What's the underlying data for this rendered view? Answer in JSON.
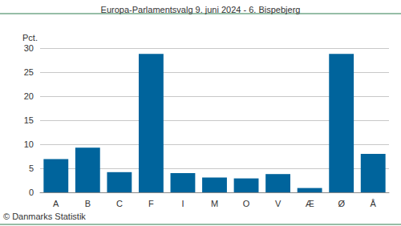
{
  "chart_data": {
    "type": "bar",
    "title": "Europa-Parlamentsvalg 9. juni 2024 - 6. Bispebjerg",
    "y_label": "Pct.",
    "annotations": [
      "© Danmarks Statistik"
    ],
    "categories": [
      "A",
      "B",
      "C",
      "F",
      "I",
      "M",
      "O",
      "V",
      "Æ",
      "Ø",
      "Å"
    ],
    "values": [
      6.9,
      9.3,
      4.2,
      28.8,
      4.0,
      3.1,
      2.9,
      3.8,
      0.9,
      28.8,
      8.0
    ],
    "color": "#00649c",
    "ylim": [
      0,
      30
    ],
    "yticks": [
      0,
      5,
      10,
      15,
      20,
      25,
      30
    ],
    "grid": true
  }
}
